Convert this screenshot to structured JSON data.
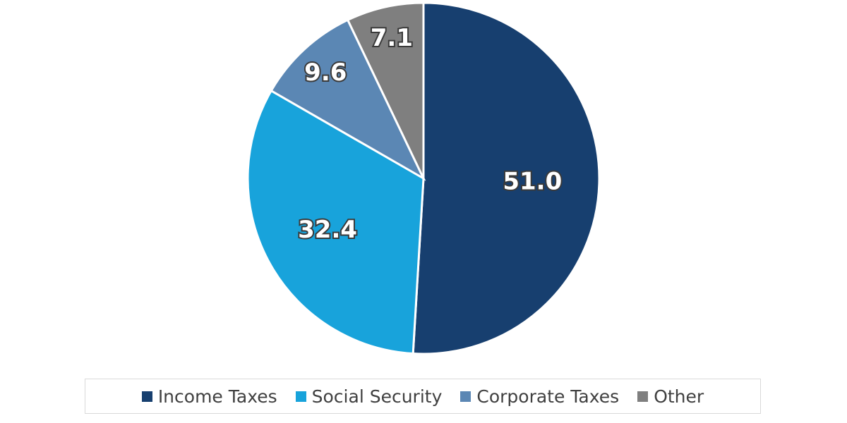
{
  "chart_data": {
    "type": "pie",
    "categories": [
      "Income Taxes",
      "Social Security",
      "Corporate Taxes",
      "Other"
    ],
    "values": [
      51.0,
      32.4,
      9.6,
      7.1
    ],
    "data_labels": [
      "51.0",
      "32.4",
      "9.6",
      "7.1"
    ],
    "colors": [
      "#173f6f",
      "#18a3db",
      "#5b87b4",
      "#7f7f7f"
    ],
    "start_angle": "12 o'clock",
    "direction": "clockwise",
    "legend": "bottom"
  }
}
